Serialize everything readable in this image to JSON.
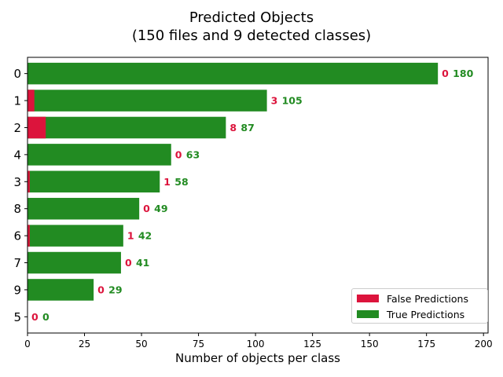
{
  "chart_data": {
    "type": "bar",
    "orientation": "horizontal",
    "stacked": true,
    "title": "Predicted Objects",
    "subtitle": "(150 files and 9 detected classes)",
    "xlabel": "Number of objects per class",
    "ylabel": "",
    "xlim": [
      0,
      202
    ],
    "xticks": [
      0,
      25,
      50,
      75,
      100,
      125,
      150,
      175,
      200
    ],
    "categories": [
      "0",
      "1",
      "2",
      "4",
      "3",
      "8",
      "6",
      "7",
      "9",
      "5"
    ],
    "series": [
      {
        "name": "False Predictions",
        "values": [
          0,
          3,
          8,
          0,
          1,
          0,
          1,
          0,
          0,
          0
        ]
      },
      {
        "name": "True Predictions",
        "values": [
          180,
          105,
          87,
          63,
          58,
          49,
          42,
          41,
          29,
          0
        ]
      }
    ],
    "colors": {
      "false": "#dc143c",
      "true": "#228b22"
    },
    "legend_position": "lower-right",
    "grid": false
  }
}
